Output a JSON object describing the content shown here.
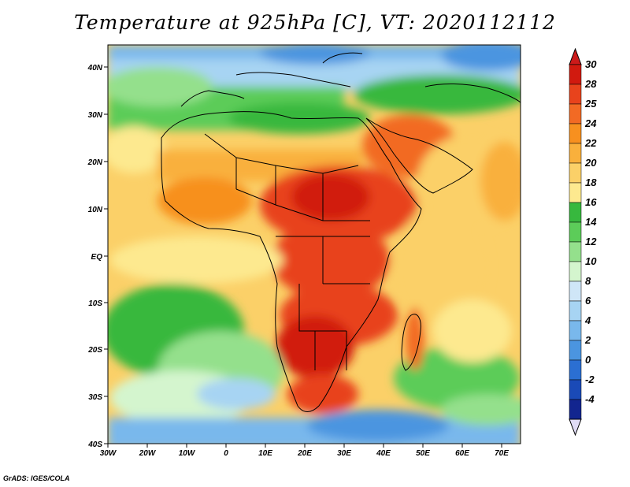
{
  "title": "Temperature at 925hPa [C], VT: 2020112112",
  "lat_labels": [
    "40N",
    "30N",
    "20N",
    "10N",
    "EQ",
    "10S",
    "20S",
    "30S",
    "40S"
  ],
  "lon_labels": [
    "30W",
    "20W",
    "10W",
    "0",
    "10E",
    "20E",
    "30E",
    "40E",
    "50E",
    "60E",
    "70E"
  ],
  "colorbar": {
    "labels": [
      "30",
      "28",
      "25",
      "24",
      "22",
      "20",
      "18",
      "16",
      "14",
      "12",
      "10",
      "8",
      "6",
      "4",
      "2",
      "0",
      "-2",
      "-4"
    ],
    "colors": [
      "#d11a0f",
      "#e8431c",
      "#f26a24",
      "#f7901f",
      "#f9b03c",
      "#fbd068",
      "#fde98f",
      "#37b83e",
      "#5ccc59",
      "#94e08c",
      "#d4f5ce",
      "#cfe6f7",
      "#a7d4f3",
      "#79b8ec",
      "#4b95e0",
      "#2b6fd2",
      "#1a4ab7",
      "#12258f"
    ],
    "top_arrow_color": "#cc1a1a",
    "bottom_arrow_color": "#e0dcf5"
  },
  "credit": "GrADS: IGES/COLA"
}
